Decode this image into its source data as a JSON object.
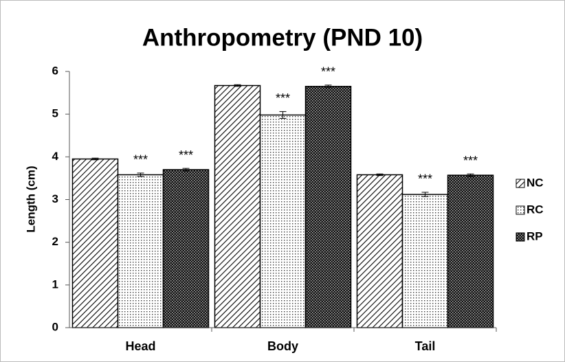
{
  "chart_data": {
    "type": "bar",
    "title": "Anthropometry (PND 10)",
    "y_label": "Length (cm)",
    "categories": [
      "Head",
      "Body",
      "Tail"
    ],
    "series": [
      {
        "name": "NC",
        "color": "#000000",
        "pattern": "diagonal",
        "values": [
          3.95,
          5.67,
          3.58
        ],
        "errors": [
          0.02,
          0.02,
          0.02
        ]
      },
      {
        "name": "RC",
        "color": "#000000",
        "pattern": "dots",
        "values": [
          3.58,
          4.98,
          3.12
        ],
        "errors": [
          0.04,
          0.08,
          0.05
        ],
        "annotations": [
          "***",
          "***",
          "***"
        ]
      },
      {
        "name": "RP",
        "color": "#000000",
        "pattern": "checker",
        "values": [
          3.7,
          5.65,
          3.57
        ],
        "errors": [
          0.03,
          0.03,
          0.03
        ],
        "annotations": [
          "***",
          "***",
          "***"
        ]
      }
    ],
    "ylim": [
      0,
      6
    ],
    "yticks": [
      0,
      1,
      2,
      3,
      4,
      5,
      6
    ],
    "grid": false,
    "legend": "right"
  }
}
